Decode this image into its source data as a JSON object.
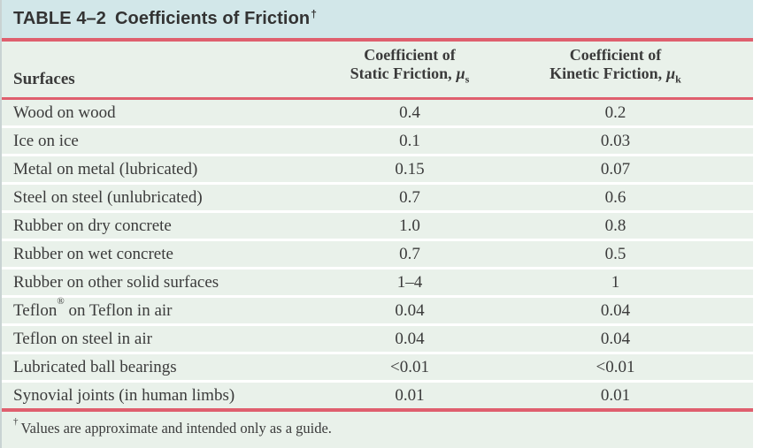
{
  "table": {
    "title": {
      "number": "TABLE 4–2",
      "text": "Coefficients of Friction",
      "dagger": "†"
    },
    "columns": {
      "surfaces": "Surfaces",
      "static": {
        "line1": "Coefficient of",
        "line2": "Static Friction,",
        "symbol": "μ",
        "sub": "s"
      },
      "kinetic": {
        "line1": "Coefficient of",
        "line2": "Kinetic Friction,",
        "symbol": "μ",
        "sub": "k"
      }
    },
    "rows": [
      {
        "surface": "Wood on wood",
        "static": "0.4",
        "kinetic": "0.2"
      },
      {
        "surface": "Ice on ice",
        "static": "0.1",
        "kinetic": "0.03"
      },
      {
        "surface": "Metal on metal (lubricated)",
        "static": "0.15",
        "kinetic": "0.07"
      },
      {
        "surface": "Steel on steel (unlubricated)",
        "static": "0.7",
        "kinetic": "0.6"
      },
      {
        "surface": "Rubber on dry concrete",
        "static": "1.0",
        "kinetic": "0.8"
      },
      {
        "surface": "Rubber on wet concrete",
        "static": "0.7",
        "kinetic": "0.5"
      },
      {
        "surface": "Rubber on other solid surfaces",
        "static": "1–4",
        "kinetic": "1"
      },
      {
        "surface": "Teflon® on Teflon in air",
        "static": "0.04",
        "kinetic": "0.04"
      },
      {
        "surface": "Teflon on steel in air",
        "static": "0.04",
        "kinetic": "0.04"
      },
      {
        "surface": "Lubricated ball bearings",
        "static": "<0.01",
        "kinetic": "<0.01"
      },
      {
        "surface": "Synovial joints (in human limbs)",
        "static": "0.01",
        "kinetic": "0.01"
      }
    ],
    "footnote": {
      "dagger": "†",
      "text": "Values are approximate and intended only as a guide."
    }
  },
  "chart_data": {
    "type": "table",
    "title": "TABLE 4–2 Coefficients of Friction",
    "columns": [
      "Surfaces",
      "Coefficient of Static Friction, μs",
      "Coefficient of Kinetic Friction, μk"
    ],
    "rows": [
      [
        "Wood on wood",
        "0.4",
        "0.2"
      ],
      [
        "Ice on ice",
        "0.1",
        "0.03"
      ],
      [
        "Metal on metal (lubricated)",
        "0.15",
        "0.07"
      ],
      [
        "Steel on steel (unlubricated)",
        "0.7",
        "0.6"
      ],
      [
        "Rubber on dry concrete",
        "1.0",
        "0.8"
      ],
      [
        "Rubber on wet concrete",
        "0.7",
        "0.5"
      ],
      [
        "Rubber on other solid surfaces",
        "1–4",
        "1"
      ],
      [
        "Teflon® on Teflon in air",
        "0.04",
        "0.04"
      ],
      [
        "Teflon on steel in air",
        "0.04",
        "0.04"
      ],
      [
        "Lubricated ball bearings",
        "<0.01",
        "<0.01"
      ],
      [
        "Synovial joints (in human limbs)",
        "0.01",
        "0.01"
      ]
    ],
    "footnote": "† Values are approximate and intended only as a guide."
  },
  "colors": {
    "title_bar_bg": "#d2e7e9",
    "body_bg": "#e9f1ea",
    "accent_line": "#df5f6e",
    "separator": "#ffffff",
    "text": "#3b3b3b",
    "title_text": "#333333"
  }
}
